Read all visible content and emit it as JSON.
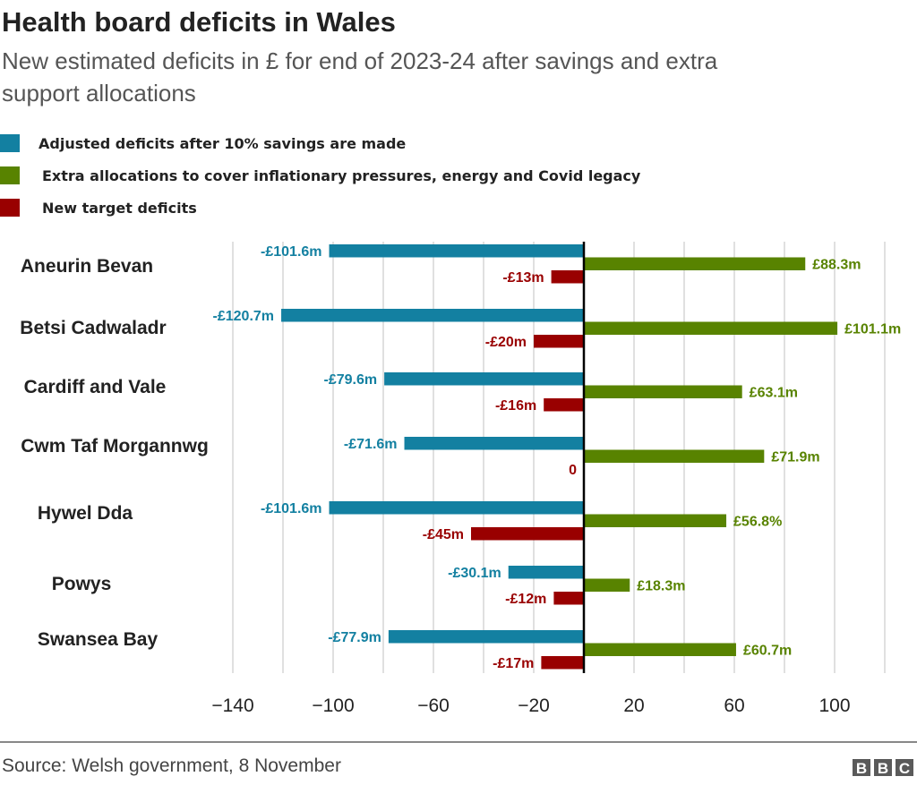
{
  "title": "Health board deficits in Wales",
  "subtitle_lines": [
    "New estimated deficits in £ for end of 2023-24 after savings and extra",
    "support allocations"
  ],
  "source": "Source: Welsh government, 8 November",
  "logo": "BBC",
  "colors": {
    "adjusted": "#1380A1",
    "allocations": "#588300",
    "target": "#990000",
    "grid": "#d5d5d5",
    "zero_line": "#000000"
  },
  "chart_data": {
    "type": "bar",
    "orientation": "horizontal",
    "title": "Health board deficits in Wales",
    "xlabel": "",
    "ylabel": "",
    "xlim": [
      -140,
      120
    ],
    "grid": true,
    "legend_placement": "top-left",
    "x_ticks": [
      -140,
      -120,
      -100,
      -80,
      -60,
      -40,
      -20,
      0,
      20,
      40,
      60,
      80,
      100,
      120
    ],
    "x_tick_labels": [
      {
        "value": -140,
        "label": "−140"
      },
      {
        "value": -100,
        "label": "−100"
      },
      {
        "value": -60,
        "label": "−60"
      },
      {
        "value": -20,
        "label": "−20"
      },
      {
        "value": 20,
        "label": "20"
      },
      {
        "value": 60,
        "label": "60"
      },
      {
        "value": 100,
        "label": "100"
      }
    ],
    "categories": [
      "Aneurin Bevan",
      "Betsi Cadwaladr",
      "Cardiff and Vale",
      "Cwm Taf Morgannwg",
      "Hywel Dda",
      "Powys",
      "Swansea Bay"
    ],
    "series": [
      {
        "name": "Adjusted deficits after 10% savings are made",
        "key": "adjusted",
        "values": [
          -101.6,
          -120.7,
          -79.6,
          -71.6,
          -101.6,
          -30.1,
          -77.9
        ],
        "labels": [
          "-£101.6m",
          "-£120.7m",
          "-£79.6m",
          "-£71.6m",
          "-£101.6m",
          "-£30.1m",
          "-£77.9m"
        ]
      },
      {
        "name": "Extra allocations to  cover inflationary pressures, energy and Covid legacy",
        "key": "allocations",
        "values": [
          88.3,
          101.1,
          63.1,
          71.9,
          56.8,
          18.3,
          60.7
        ],
        "labels": [
          "£88.3m",
          "£101.1m",
          "£63.1m",
          "£71.9m",
          "£56.8%",
          "£18.3m",
          "£60.7m"
        ]
      },
      {
        "name": "New target deficits",
        "key": "target",
        "values": [
          -13,
          -20,
          -16,
          0,
          -45,
          -12,
          -17
        ],
        "labels": [
          "-£13m",
          "-£20m",
          "-£16m",
          "0",
          "-£45m",
          "-£12m",
          "-£17m"
        ]
      }
    ]
  }
}
